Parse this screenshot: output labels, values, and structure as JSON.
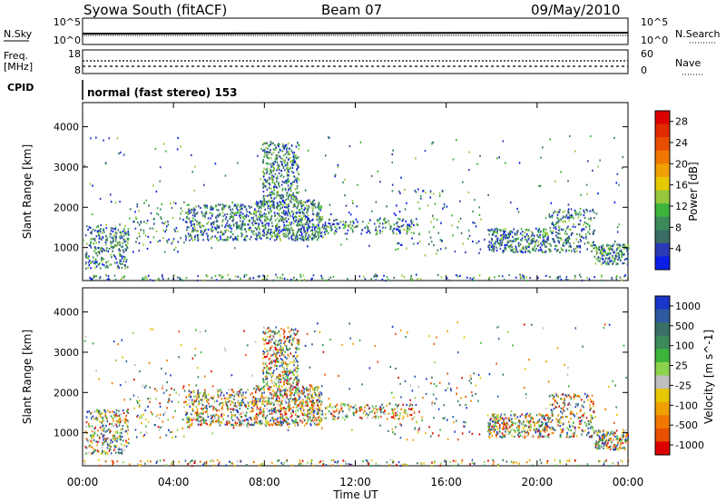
{
  "header": {
    "station": "Syowa South (fitACF)",
    "beam": "Beam 07",
    "date": "09/May/2010"
  },
  "strip_labels": {
    "nsky": "N.Sky",
    "nsearch": "N.Search",
    "freq_line1": "Freq.",
    "freq_line2": "[MHz]",
    "nave": "Nave",
    "cpid": "CPID",
    "nsky_ticks": [
      "10^5",
      "10^0"
    ],
    "nsearch_ticks": [
      "10^5",
      "10^0"
    ],
    "freq_ticks": [
      "18",
      "8"
    ],
    "nave_ticks": [
      "60",
      "0"
    ],
    "cpid_text": "normal (fast stereo) 153"
  },
  "colors": {
    "power_scale": [
      "#0a1ee6",
      "#2a3ab4",
      "#3a6e64",
      "#3c8a5a",
      "#3cb43c",
      "#96c83c",
      "#e6c800",
      "#f0a000",
      "#f07800",
      "#e85000",
      "#e02a00",
      "#dc0000"
    ],
    "velocity_scale": [
      "#1a36c8",
      "#2e5aa0",
      "#3a6e64",
      "#3c8a5a",
      "#3cb43c",
      "#8cd24c",
      "#bebebe",
      "#e6c800",
      "#f0a000",
      "#f07800",
      "#e85000",
      "#dc0000"
    ]
  },
  "chart_data": [
    {
      "type": "heatmap",
      "title": "Power [dB]",
      "xlabel": "",
      "ylabel": "Slant Range [km]",
      "x_ticks": [
        "00:00",
        "04:00",
        "08:00",
        "12:00",
        "16:00",
        "20:00",
        "00:00"
      ],
      "x_range_hours": [
        0,
        24
      ],
      "y_ticks": [
        "1000",
        "2000",
        "3000",
        "4000"
      ],
      "ylim": [
        180,
        4600
      ],
      "colorbar_label": "Power [dB]",
      "colorbar_ticks": [
        "4",
        "8",
        "12",
        "16",
        "20",
        "24",
        "28"
      ],
      "colorbar_range": [
        0,
        30
      ]
    },
    {
      "type": "heatmap",
      "title": "Velocity [m s^-1]",
      "xlabel": "Time UT",
      "ylabel": "Slant Range [km]",
      "x_ticks": [
        "00:00",
        "04:00",
        "08:00",
        "12:00",
        "16:00",
        "20:00",
        "00:00"
      ],
      "x_range_hours": [
        0,
        24
      ],
      "y_ticks": [
        "1000",
        "2000",
        "3000",
        "4000"
      ],
      "ylim": [
        180,
        4600
      ],
      "colorbar_label": "Velocity [m s^-1]",
      "colorbar_ticks": [
        "1000",
        "500",
        "100",
        "25",
        "-25",
        "-100",
        "-500",
        "-1000"
      ],
      "colorbar_range": [
        1000,
        -1000
      ]
    }
  ]
}
